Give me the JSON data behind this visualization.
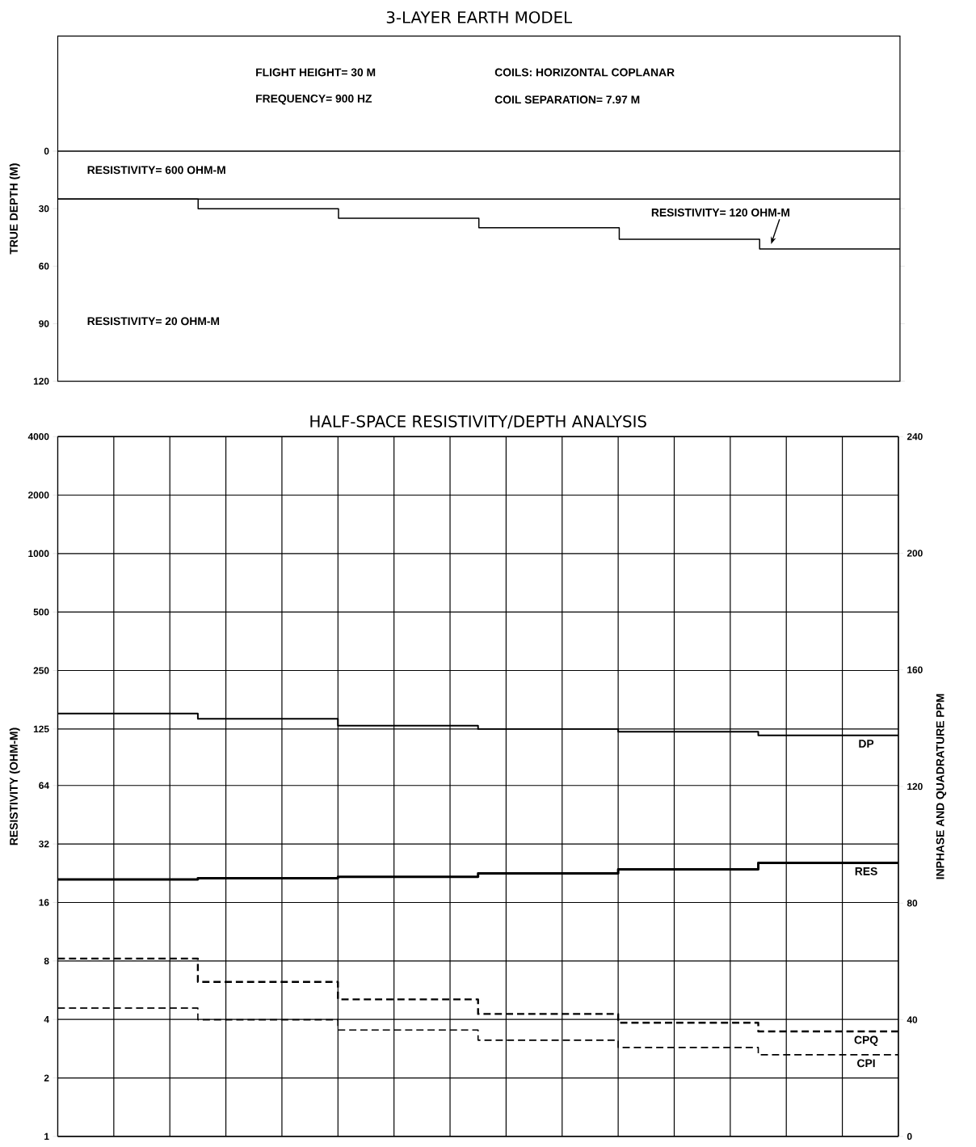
{
  "chart_data": [
    {
      "type": "step",
      "title": "3-LAYER EARTH MODEL",
      "ylabel": "TRUE DEPTH (M)",
      "annotations": [
        "FLIGHT HEIGHT= 30 M",
        "COILS: HORIZONTAL COPLANAR",
        "FREQUENCY= 900 HZ",
        "COIL SEPARATION= 7.97 M",
        "RESISTIVITY= 600 OHM-M",
        "RESISTIVITY= 120 OHM-M",
        "RESISTIVITY= 20 OHM-M"
      ],
      "categories": [
        null,
        null,
        null,
        null,
        null,
        null,
        null
      ],
      "ylim": [
        120,
        -60
      ],
      "yticks": [
        0,
        30,
        60,
        90,
        120
      ],
      "tick_labels": "y",
      "ref_lines": [
        {
          "axis": "y",
          "value": 0,
          "color": "#000000"
        },
        {
          "axis": "y",
          "value": 25,
          "color": "#000000"
        }
      ],
      "series": [
        {
          "color": "#000000",
          "values": [
            25,
            30,
            35,
            40,
            46,
            51,
            51
          ]
        }
      ]
    },
    {
      "type": "step",
      "title": "HALF-SPACE RESISTIVITY/DEPTH ANALYSIS",
      "ylabel": "RESISTIVITY (OHM-M)",
      "y2label": "INPHASE AND QUADRATURE PPM",
      "categories": [
        null,
        null,
        null,
        null,
        null,
        null,
        null
      ],
      "ylim": [
        1,
        4000
      ],
      "yticks": [
        1,
        2,
        4,
        8,
        16,
        32,
        64,
        125,
        250,
        500,
        1000,
        2000,
        4000
      ],
      "y2lim": [
        0,
        240
      ],
      "y2ticks": [
        0,
        40,
        80,
        120,
        160,
        200,
        240
      ],
      "log": "y",
      "grid": true,
      "tick_labels": "y",
      "series": [
        {
          "name": "DP",
          "color": "#000000",
          "values": [
            150,
            141,
            130,
            125,
            121,
            116,
            116
          ]
        },
        {
          "name": "RES",
          "color": "#000000",
          "values": [
            21,
            21.3,
            21.7,
            22.6,
            23.7,
            25.6,
            25.6
          ]
        },
        {
          "name": "CPQ",
          "color": "#000000",
          "axis": "y2",
          "line_style": "dashed",
          "values": [
            61,
            53,
            47,
            42,
            39,
            36,
            36
          ]
        },
        {
          "name": "CPI",
          "color": "#000000",
          "axis": "y2",
          "line_style": "dashed",
          "values": [
            44,
            40,
            36.5,
            33,
            30.5,
            28,
            28
          ]
        }
      ]
    }
  ]
}
